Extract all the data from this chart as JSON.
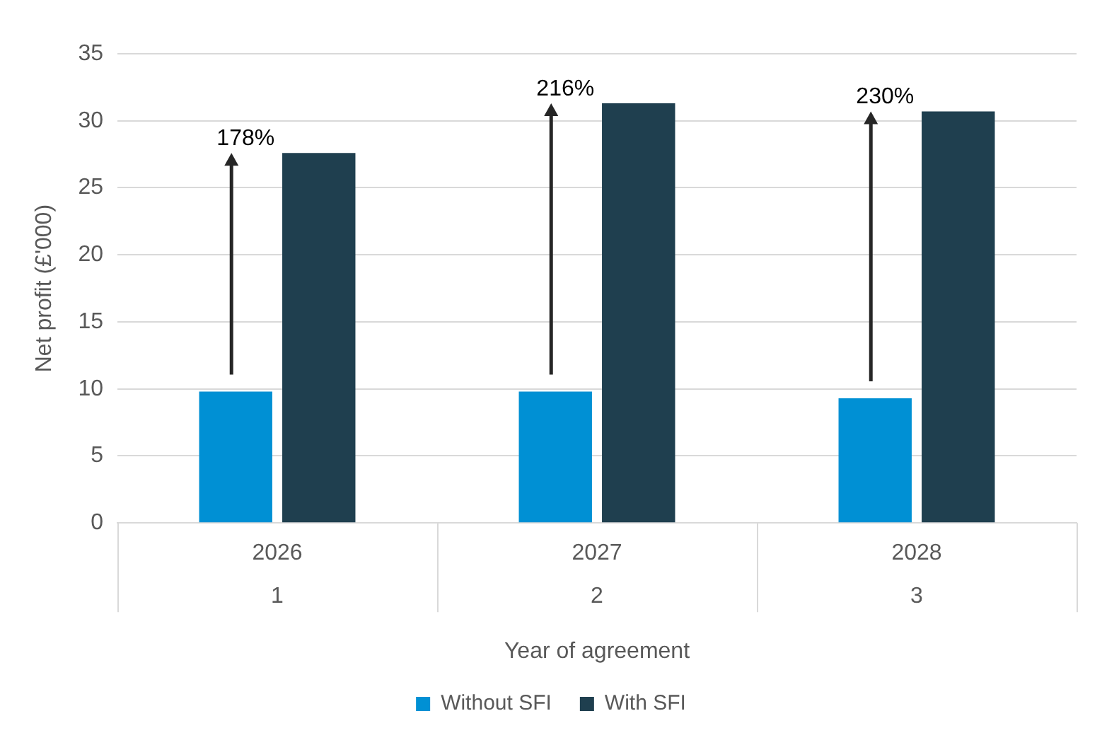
{
  "chart_data": {
    "type": "bar",
    "categories": [
      "2026",
      "2027",
      "2028"
    ],
    "ylabel": "Net profit (£'000)",
    "xlabel": "Year of agreement",
    "series": [
      {
        "name": "Without SFI",
        "color": "#0090d4",
        "values": [
          9.8,
          9.8,
          9.3
        ]
      },
      {
        "name": "With SFI",
        "color": "#1f3f4f",
        "values": [
          27.6,
          31.3,
          30.7
        ]
      }
    ],
    "ylim": [
      0,
      35
    ],
    "yticks": [
      0,
      5,
      10,
      15,
      20,
      25,
      30,
      35
    ],
    "grid": "y",
    "legend": "bottom",
    "annotations": [
      {
        "text": "178%",
        "x": "2026",
        "y": 27.6
      },
      {
        "text": "216%",
        "x": "2027",
        "y": 31.3
      },
      {
        "text": "230%",
        "x": "2028",
        "y": 30.7
      },
      "1",
      "2",
      "3"
    ]
  }
}
